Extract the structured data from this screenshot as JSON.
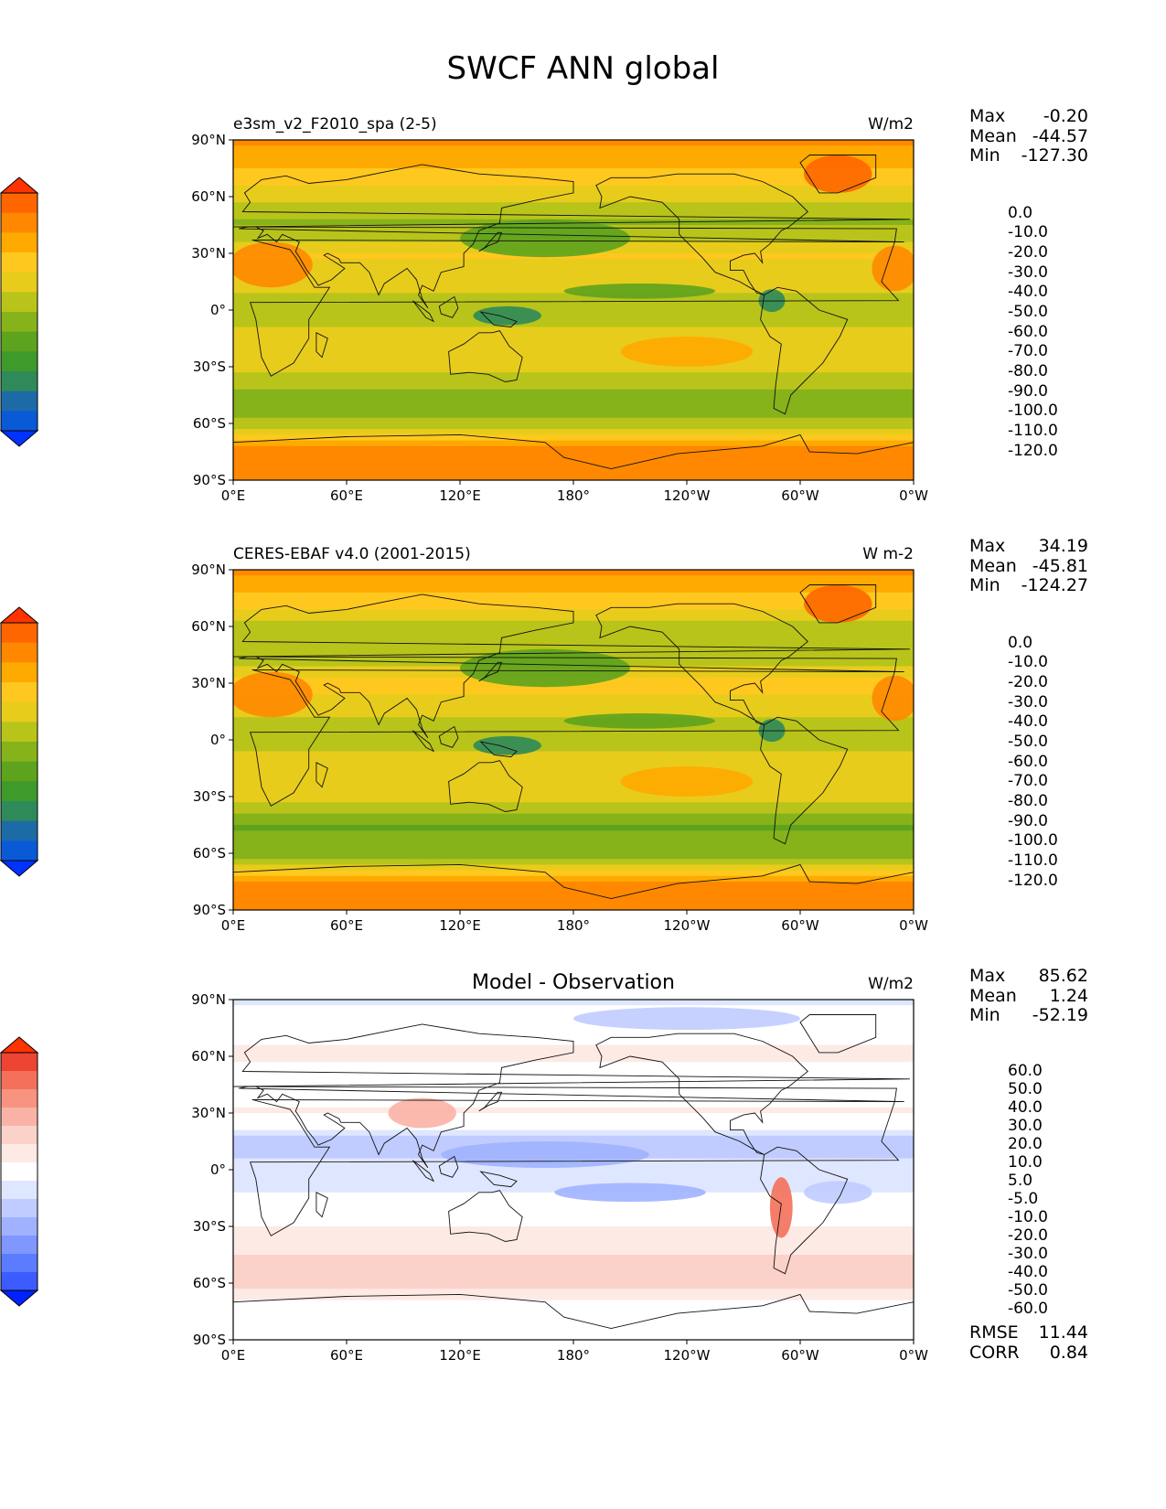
{
  "page_title": "SWCF ANN global",
  "lat_ticks": [
    "90°N",
    "60°N",
    "30°N",
    "0°",
    "30°S",
    "60°S",
    "90°S"
  ],
  "lon_ticks": [
    "0°E",
    "60°E",
    "120°E",
    "180°",
    "120°W",
    "60°W",
    "0°W"
  ],
  "colors": {
    "abs_levels": [
      "#ff3300",
      "#ff6600",
      "#ff8800",
      "#ffaa00",
      "#ffc81e",
      "#e8cc1c",
      "#b8c41a",
      "#86b21a",
      "#5da31e",
      "#3e9a2a",
      "#2f8a5a",
      "#1d6ba6",
      "#0a5ad8",
      "#0033ff"
    ],
    "diff_levels": [
      "#ff3300",
      "#ee4433",
      "#f4705a",
      "#f7947f",
      "#f9b3a6",
      "#fbd2c9",
      "#fdeae5",
      "#ffffff",
      "#dfe6ff",
      "#c0ccff",
      "#a0b2ff",
      "#7f97ff",
      "#5c7cff",
      "#3c5cff",
      "#0022ff"
    ]
  },
  "panels": [
    {
      "id": "model",
      "left_title": "e3sm_v2_F2010_spa (2-5)",
      "center_title": "",
      "units": "W/m2",
      "stats": [
        {
          "label": "Max",
          "value": "-0.20"
        },
        {
          "label": "Mean",
          "value": "-44.57"
        },
        {
          "label": "Min",
          "value": "-127.30"
        }
      ],
      "colorbar_ticks": [
        "0.0",
        "-10.0",
        "-20.0",
        "-30.0",
        "-40.0",
        "-50.0",
        "-60.0",
        "-70.0",
        "-80.0",
        "-90.0",
        "-100.0",
        "-110.0",
        "-120.0"
      ]
    },
    {
      "id": "obs",
      "left_title": "CERES-EBAF v4.0 (2001-2015)",
      "center_title": "",
      "units": "W m-2",
      "stats": [
        {
          "label": "Max",
          "value": "34.19"
        },
        {
          "label": "Mean",
          "value": "-45.81"
        },
        {
          "label": "Min",
          "value": "-124.27"
        }
      ],
      "colorbar_ticks": [
        "0.0",
        "-10.0",
        "-20.0",
        "-30.0",
        "-40.0",
        "-50.0",
        "-60.0",
        "-70.0",
        "-80.0",
        "-90.0",
        "-100.0",
        "-110.0",
        "-120.0"
      ]
    },
    {
      "id": "diff",
      "left_title": "",
      "center_title": "Model - Observation",
      "units": "W/m2",
      "stats": [
        {
          "label": "Max",
          "value": "85.62"
        },
        {
          "label": "Mean",
          "value": "1.24"
        },
        {
          "label": "Min",
          "value": "-52.19"
        }
      ],
      "colorbar_ticks": [
        "60.0",
        "50.0",
        "40.0",
        "30.0",
        "20.0",
        "10.0",
        "5.0",
        "-5.0",
        "-10.0",
        "-20.0",
        "-30.0",
        "-40.0",
        "-50.0",
        "-60.0"
      ]
    }
  ],
  "metrics": [
    {
      "label": "RMSE",
      "value": "11.44"
    },
    {
      "label": "CORR",
      "value": "0.84"
    }
  ],
  "chart_data": [
    {
      "type": "heatmap",
      "title": "e3sm_v2_F2010_spa (2-5)",
      "units": "W/m2",
      "x_range": [
        0,
        360
      ],
      "y_range": [
        -90,
        90
      ],
      "zonal_profile": {
        "lat": [
          90,
          75,
          60,
          45,
          30,
          15,
          0,
          -15,
          -30,
          -45,
          -60,
          -75,
          -90
        ],
        "value": [
          -18,
          -30,
          -48,
          -62,
          -38,
          -45,
          -55,
          -45,
          -48,
          -65,
          -58,
          -14,
          -12
        ]
      },
      "summary": {
        "max": -0.2,
        "mean": -44.57,
        "min": -127.3
      }
    },
    {
      "type": "heatmap",
      "title": "CERES-EBAF v4.0 (2001-2015)",
      "units": "W m-2",
      "x_range": [
        0,
        360
      ],
      "y_range": [
        -90,
        90
      ],
      "zonal_profile": {
        "lat": [
          90,
          75,
          60,
          45,
          30,
          15,
          0,
          -15,
          -30,
          -45,
          -60,
          -75,
          -90
        ],
        "value": [
          -18,
          -32,
          -52,
          -60,
          -35,
          -48,
          -58,
          -40,
          -45,
          -72,
          -65,
          -15,
          -12
        ]
      },
      "summary": {
        "max": 34.19,
        "mean": -45.81,
        "min": -124.27
      }
    },
    {
      "type": "heatmap",
      "title": "Model - Observation",
      "units": "W/m2",
      "x_range": [
        0,
        360
      ],
      "y_range": [
        -90,
        90
      ],
      "zonal_profile": {
        "lat": [
          90,
          75,
          60,
          45,
          30,
          15,
          0,
          -15,
          -30,
          -45,
          -60,
          -75,
          -90
        ],
        "value": [
          -6,
          4,
          6,
          0,
          6,
          -12,
          -8,
          -4,
          6,
          10,
          12,
          2,
          0
        ]
      },
      "summary": {
        "max": 85.62,
        "mean": 1.24,
        "min": -52.19
      }
    }
  ]
}
